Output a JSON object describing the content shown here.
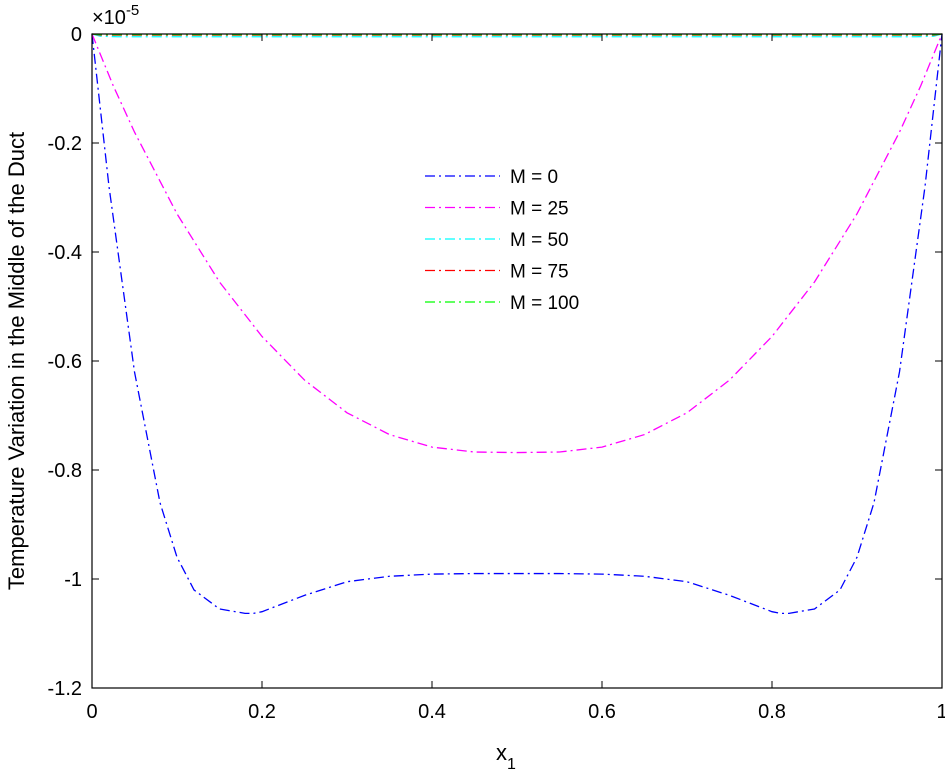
{
  "chart_data": {
    "type": "line",
    "title": "",
    "xlabel": "x",
    "xlabel_subscript": "1",
    "ylabel": "Temperature Variation in the Middle of the Duct",
    "exponent_label": "×10",
    "exponent_power": "-5",
    "xlim": [
      0,
      1
    ],
    "ylim": [
      -1.2,
      0
    ],
    "y_scale_factor": 1e-05,
    "xticks": [
      0,
      0.2,
      0.4,
      0.6,
      0.8,
      1
    ],
    "xtick_labels": [
      "0",
      "0.2",
      "0.4",
      "0.6",
      "0.8",
      "1"
    ],
    "yticks": [
      -1.2,
      -1,
      -0.8,
      -0.6,
      -0.4,
      -0.2,
      0
    ],
    "ytick_labels": [
      "-1.2",
      "-1",
      "-0.8",
      "-0.6",
      "-0.4",
      "-0.2",
      "0"
    ],
    "grid": false,
    "legend_position": "center",
    "line_style": "dash-dot",
    "series": [
      {
        "name": "M = 0",
        "color": "#0000ff",
        "x": [
          0,
          0.02,
          0.05,
          0.08,
          0.1,
          0.12,
          0.15,
          0.18,
          0.19,
          0.2,
          0.25,
          0.3,
          0.35,
          0.4,
          0.45,
          0.5,
          0.55,
          0.6,
          0.65,
          0.7,
          0.75,
          0.8,
          0.81,
          0.82,
          0.85,
          0.88,
          0.9,
          0.92,
          0.95,
          0.98,
          1
        ],
        "y": [
          0,
          -0.28,
          -0.62,
          -0.86,
          -0.96,
          -1.02,
          -1.055,
          -1.063,
          -1.063,
          -1.06,
          -1.03,
          -1.005,
          -0.995,
          -0.991,
          -0.99,
          -0.99,
          -0.99,
          -0.991,
          -0.995,
          -1.005,
          -1.03,
          -1.06,
          -1.063,
          -1.063,
          -1.055,
          -1.02,
          -0.96,
          -0.86,
          -0.62,
          -0.28,
          0
        ]
      },
      {
        "name": "M = 25",
        "color": "#ff00ff",
        "x": [
          0,
          0.025,
          0.05,
          0.1,
          0.15,
          0.2,
          0.25,
          0.3,
          0.35,
          0.4,
          0.45,
          0.5,
          0.55,
          0.6,
          0.65,
          0.7,
          0.75,
          0.8,
          0.85,
          0.9,
          0.95,
          0.975,
          1
        ],
        "y": [
          0,
          -0.095,
          -0.18,
          -0.33,
          -0.455,
          -0.555,
          -0.635,
          -0.695,
          -0.735,
          -0.758,
          -0.767,
          -0.768,
          -0.767,
          -0.758,
          -0.735,
          -0.695,
          -0.635,
          -0.555,
          -0.455,
          -0.33,
          -0.18,
          -0.095,
          0
        ]
      },
      {
        "name": "M = 50",
        "color": "#00ffff",
        "x": [
          0,
          0.01,
          0.03,
          0.5,
          0.97,
          0.99,
          1
        ],
        "y": [
          0,
          -0.004,
          -0.005,
          -0.005,
          -0.005,
          -0.004,
          0
        ]
      },
      {
        "name": "M = 75",
        "color": "#ff0000",
        "x": [
          0,
          0.01,
          0.03,
          0.5,
          0.97,
          0.99,
          1
        ],
        "y": [
          0,
          -0.002,
          -0.002,
          -0.002,
          -0.002,
          -0.002,
          0
        ]
      },
      {
        "name": "M = 100",
        "color": "#00ff00",
        "x": [
          0,
          0.01,
          0.03,
          0.5,
          0.97,
          0.99,
          1
        ],
        "y": [
          0,
          -0.001,
          -0.001,
          -0.001,
          -0.001,
          -0.001,
          0
        ]
      }
    ]
  }
}
